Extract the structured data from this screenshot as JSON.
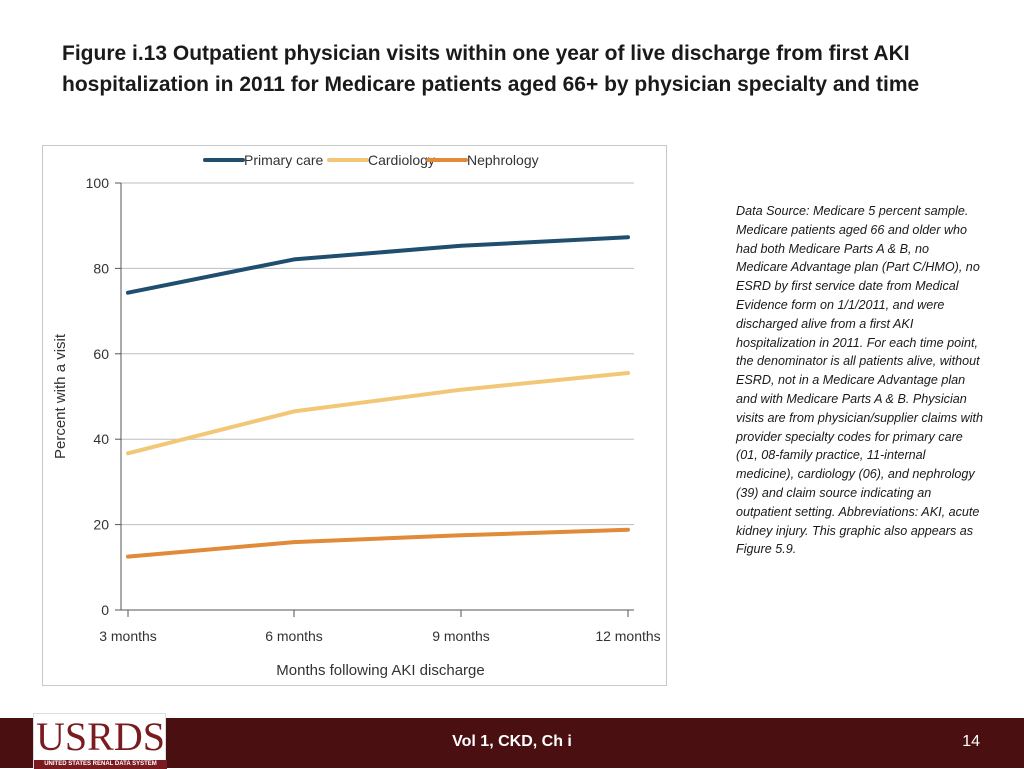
{
  "slide": {
    "title": "Figure i.13  Outpatient physician visits within one year of live discharge from first AKI hospitalization in 2011 for Medicare patients aged 66+ by physician specialty and time",
    "note": "Data Source: Medicare 5 percent sample. Medicare patients aged 66 and older who had both Medicare Parts A & B, no Medicare Advantage plan (Part C/HMO), no ESRD by first service date from Medical Evidence form on 1/1/2011, and were discharged alive from a first AKI hospitalization in 2011. For each time point, the denominator is all patients alive, without ESRD, not in a Medicare Advantage plan and with Medicare Parts A & B. Physician visits are from physician/supplier claims with provider specialty codes for primary care (01, 08-family practice, 11-internal medicine), cardiology (06), and nephrology (39) and claim source indicating an outpatient setting. Abbreviations: AKI, acute kidney injury. This graphic also appears as Figure 5.9."
  },
  "footer": {
    "logo_text": "USRDS",
    "logo_subtext": "UNITED STATES RENAL DATA SYSTEM",
    "center_label": "Vol 1, CKD, Ch i",
    "page_number": "14",
    "bg_color": "#4a0f10"
  },
  "chart_data": {
    "type": "line",
    "title": "",
    "xlabel": "Months following AKI discharge",
    "ylabel": "Percent with a visit",
    "categories": [
      "3 months",
      "6 months",
      "9 months",
      "12 months"
    ],
    "ylim": [
      0,
      100
    ],
    "yticks": [
      0,
      20,
      40,
      60,
      80,
      100
    ],
    "grid": true,
    "legend_position": "top",
    "series": [
      {
        "name": "Primary care",
        "color": "#1f4e6e",
        "values": [
          74.3,
          82.1,
          85.3,
          87.3
        ]
      },
      {
        "name": "Cardiology",
        "color": "#f2c777",
        "values": [
          36.7,
          46.5,
          51.6,
          55.5
        ]
      },
      {
        "name": "Nephrology",
        "color": "#e08a3a",
        "values": [
          12.5,
          15.9,
          17.5,
          18.8
        ]
      }
    ]
  }
}
